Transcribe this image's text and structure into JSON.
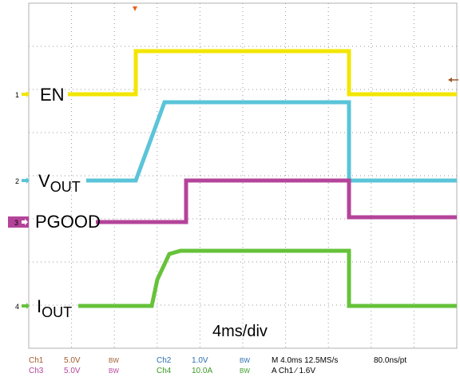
{
  "channels": [
    {
      "id": "ch1",
      "marker": "1",
      "name": "EN",
      "color": "#f2e600",
      "scale": "5.0V"
    },
    {
      "id": "ch2",
      "marker": "2",
      "name_main": "V",
      "name_sub": "OUT",
      "color": "#5bc4d8",
      "scale": "1.0V"
    },
    {
      "id": "ch3",
      "marker": "3",
      "name": "PGOOD",
      "color": "#b4449a",
      "scale": "5.0V"
    },
    {
      "id": "ch4",
      "marker": "4",
      "name_main": "I",
      "name_sub": "OUT",
      "color": "#66c23a",
      "scale": "10.0A"
    }
  ],
  "timebase_label": "4ms/div",
  "readout": {
    "row1": {
      "ch1": "Ch1",
      "ch1_scale": "5.0V",
      "bw": "BW",
      "ch2": "Ch2",
      "ch2_scale": "1.0V",
      "acq": "M 4.0ms 12.5MS/s",
      "res": "80.0ns/pt"
    },
    "row2": {
      "ch3": "Ch3",
      "ch3_scale": "5.0V",
      "ch4": "Ch4",
      "ch4_scale": "10.0A",
      "trig": "A  Ch1  ∕  1.6V"
    }
  },
  "colors": {
    "grid": "#9a9a9a",
    "trigger_marker": "#e8641e",
    "text": "#000000",
    "readout_label": "#a05a2a"
  }
}
